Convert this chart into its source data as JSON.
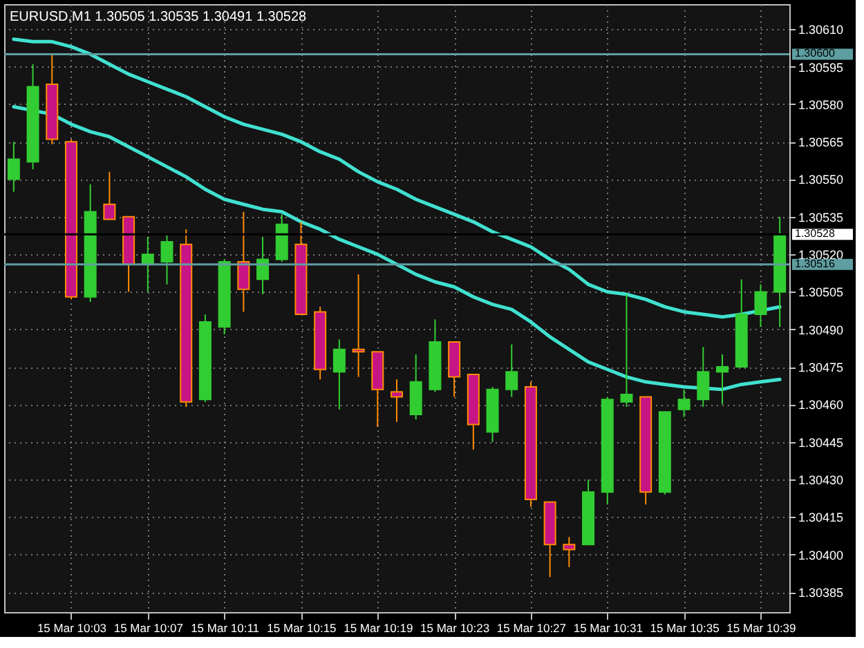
{
  "chart_data": {
    "type": "candlestick",
    "title": "EURUSD,M1  1.30505 1.30535 1.30491 1.30528",
    "categories": [
      null,
      null,
      null,
      "15 Mar 10:03",
      null,
      null,
      null,
      "15 Mar 10:07",
      null,
      null,
      null,
      "15 Mar 10:11",
      null,
      null,
      null,
      "15 Mar 10:15",
      null,
      null,
      null,
      "15 Mar 10:19",
      null,
      null,
      null,
      "15 Mar 10:23",
      null,
      null,
      null,
      "15 Mar 10:27",
      null,
      null,
      null,
      "15 Mar 10:31",
      null,
      null,
      null,
      "15 Mar 10:35",
      null,
      null,
      null,
      "15 Mar 10:39",
      null
    ],
    "ohlc": [
      [
        1.3055,
        1.30565,
        1.30545,
        1.30558
      ],
      [
        1.30557,
        1.30596,
        1.30554,
        1.30587
      ],
      [
        1.30588,
        1.306,
        1.30564,
        1.30566
      ],
      [
        1.30565,
        1.30566,
        1.30502,
        1.30503
      ],
      [
        1.30503,
        1.30548,
        1.30501,
        1.30537
      ],
      [
        1.3054,
        1.30553,
        1.30534,
        1.30534
      ],
      [
        1.30535,
        1.30535,
        1.30505,
        1.30516
      ],
      [
        1.30516,
        1.30527,
        1.30505,
        1.3052
      ],
      [
        1.30517,
        1.30528,
        1.30508,
        1.30525
      ],
      [
        1.30524,
        1.3053,
        1.30459,
        1.30461
      ],
      [
        1.30462,
        1.30496,
        1.30461,
        1.30493
      ],
      [
        1.30491,
        1.30518,
        1.30488,
        1.30517
      ],
      [
        1.30517,
        1.30537,
        1.30497,
        1.30506
      ],
      [
        1.3051,
        1.30527,
        1.30504,
        1.30518
      ],
      [
        1.30518,
        1.30536,
        1.30517,
        1.30532
      ],
      [
        1.30524,
        1.30533,
        1.30496,
        1.30496
      ],
      [
        1.30497,
        1.30499,
        1.3047,
        1.30474
      ],
      [
        1.30473,
        1.30486,
        1.30458,
        1.30482
      ],
      [
        1.30482,
        1.30512,
        1.30471,
        1.30481
      ],
      [
        1.30481,
        1.30481,
        1.30451,
        1.30466
      ],
      [
        1.30465,
        1.3047,
        1.30453,
        1.30463
      ],
      [
        1.30456,
        1.3048,
        1.30454,
        1.30469
      ],
      [
        1.30466,
        1.30494,
        1.30465,
        1.30485
      ],
      [
        1.30485,
        1.30485,
        1.30463,
        1.30471
      ],
      [
        1.30472,
        1.30472,
        1.30442,
        1.30452
      ],
      [
        1.30449,
        1.30467,
        1.30445,
        1.30466
      ],
      [
        1.30466,
        1.30484,
        1.30463,
        1.30473
      ],
      [
        1.30467,
        1.30469,
        1.30419,
        1.30422
      ],
      [
        1.30421,
        1.30421,
        1.30391,
        1.30404
      ],
      [
        1.30404,
        1.30407,
        1.30395,
        1.30402
      ],
      [
        1.30404,
        1.3043,
        1.30404,
        1.30425
      ],
      [
        1.30425,
        1.30463,
        1.3042,
        1.30462
      ],
      [
        1.30461,
        1.30504,
        1.30459,
        1.30464
      ],
      [
        1.30463,
        1.30463,
        1.3042,
        1.30425
      ],
      [
        1.30425,
        1.30457,
        1.30424,
        1.30457
      ],
      [
        1.30458,
        1.30466,
        1.30455,
        1.30462
      ],
      [
        1.30462,
        1.30483,
        1.30459,
        1.30473
      ],
      [
        1.30473,
        1.3048,
        1.3046,
        1.30475
      ],
      [
        1.30475,
        1.3051,
        1.30475,
        1.30496
      ],
      [
        1.30496,
        1.30508,
        1.30491,
        1.30505
      ],
      [
        1.30505,
        1.30535,
        1.30491,
        1.30528
      ]
    ],
    "colors": [
      "#32cd32",
      "#32cd32",
      "#c71585",
      "#c71585",
      "#32cd32",
      "#c71585",
      "#c71585",
      "#32cd32",
      "#32cd32",
      "#c71585",
      "#32cd32",
      "#32cd32",
      "#c71585",
      "#32cd32",
      "#32cd32",
      "#c71585",
      "#c71585",
      "#32cd32",
      "#c71585",
      "#c71585",
      "#c71585",
      "#32cd32",
      "#32cd32",
      "#c71585",
      "#c71585",
      "#32cd32",
      "#32cd32",
      "#c71585",
      "#c71585",
      "#c71585",
      "#32cd32",
      "#32cd32",
      "#32cd32",
      "#c71585",
      "#32cd32",
      "#32cd32",
      "#32cd32",
      "#32cd32",
      "#32cd32",
      "#32cd32",
      "#32cd32"
    ],
    "series": [
      {
        "type": "line",
        "color": "#40e0d0",
        "values": [
          1.30606,
          1.30605,
          1.30605,
          1.30603,
          1.306,
          1.30596,
          1.30592,
          1.30589,
          1.30586,
          1.30583,
          1.30579,
          1.30575,
          1.30572,
          1.3057,
          1.30568,
          1.30565,
          1.30561,
          1.30558,
          1.30553,
          1.30549,
          1.30546,
          1.30542,
          1.30539,
          1.30536,
          1.30533,
          1.30529,
          1.30526,
          1.30523,
          1.30518,
          1.30514,
          1.30508,
          1.30505,
          1.30504,
          1.30502,
          1.30499,
          1.30497,
          1.30496,
          1.30495,
          1.30496,
          null,
          1.30499
        ]
      },
      {
        "type": "line",
        "color": "#40e0d0",
        "values": [
          1.30579,
          null,
          1.30576,
          1.30572,
          1.30569,
          1.30567,
          1.30563,
          1.30559,
          1.30555,
          1.30551,
          1.30546,
          1.30542,
          1.3054,
          1.30538,
          1.30537,
          1.30533,
          1.3053,
          1.30526,
          1.30523,
          1.3052,
          1.30516,
          1.30512,
          1.30509,
          1.30507,
          1.30503,
          1.305,
          1.30498,
          1.30493,
          1.30487,
          1.30482,
          1.30477,
          1.30474,
          1.30471,
          1.30469,
          1.30468,
          1.30467,
          null,
          1.30466,
          1.30468,
          1.30469,
          1.3047
        ]
      }
    ],
    "ylim": [
      1.30377,
      1.3062
    ],
    "yticks": [
      1.30385,
      {
        "value": 1.304,
        "label": "1.30400"
      },
      1.30415,
      {
        "value": 1.3043,
        "label": "1.30430"
      },
      1.30445,
      {
        "value": 1.3046,
        "label": "1.30460"
      },
      1.30475,
      {
        "value": 1.3049,
        "label": "1.30490"
      },
      1.30505,
      {
        "value": 1.3052,
        "label": "1.30520"
      },
      1.30535,
      {
        "value": 1.3055,
        "label": "1.30550"
      },
      1.30565,
      {
        "value": 1.3058,
        "label": "1.30580"
      },
      1.30595,
      {
        "value": 1.3061,
        "label": "1.30610"
      }
    ],
    "ref_lines": [
      {
        "axis": "y",
        "value": 1.306,
        "label": "1.30600",
        "color": "#5f9ea0"
      },
      {
        "axis": "y",
        "value": 1.30516,
        "label": "1.30516",
        "color": "#5f9ea0"
      },
      {
        "axis": "y",
        "value": 1.30528,
        "label": "1.30528",
        "color": "#000000"
      }
    ],
    "grid": true,
    "marker": "none",
    "line_style": "solid"
  }
}
